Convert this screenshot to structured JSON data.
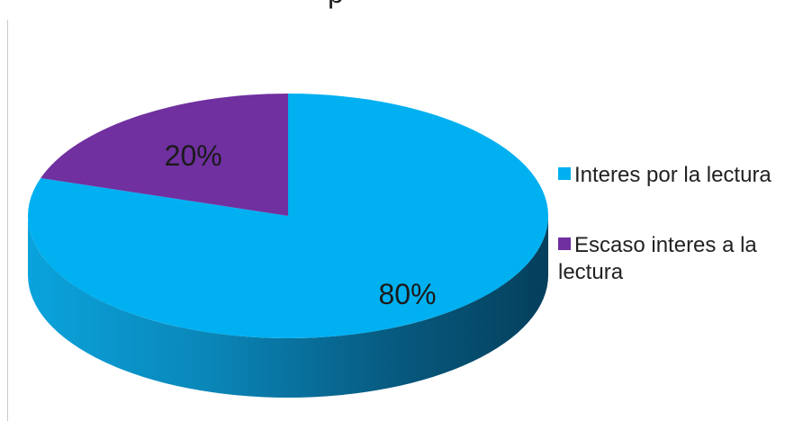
{
  "chart_data": {
    "type": "pie",
    "style": "3d",
    "title": "",
    "title_visible_fragment": "p",
    "series": [
      {
        "name": "",
        "values": [
          80,
          20
        ]
      }
    ],
    "categories": [
      "Interes por la lectura",
      "Escaso interes a la lectura"
    ],
    "data_labels": [
      "80%",
      "20%"
    ],
    "colors": [
      "#00B0F0",
      "#7030A0"
    ],
    "legend_position": "right"
  }
}
